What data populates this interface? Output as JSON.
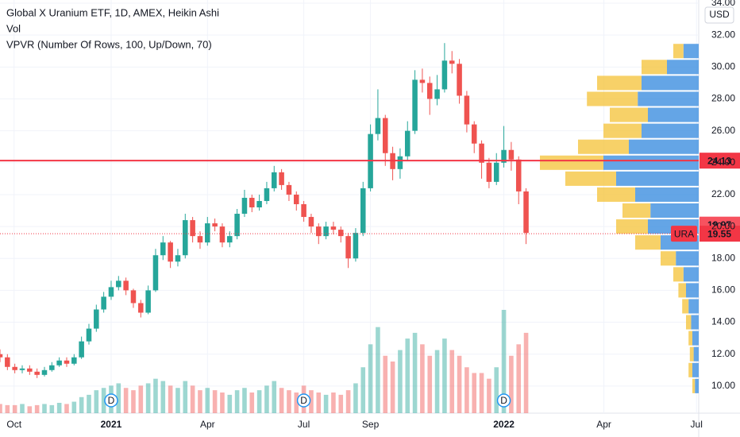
{
  "chart_data": {
    "type": "candlestick",
    "title": "Global X Uranium ETF, 1D, AMEX, Heikin Ashi",
    "indicators": [
      "Vol",
      "VPVR (Number Of Rows, 100, Up/Down, 70)"
    ],
    "currency": "USD",
    "open": [
      12.0,
      11.8,
      11.2,
      11.0,
      11.1,
      10.9,
      10.7,
      11.0,
      11.3,
      11.6,
      11.4,
      11.8,
      12.8,
      13.6,
      14.8,
      15.6,
      16.2,
      16.6,
      16.0,
      15.2,
      14.6,
      16.0,
      18.2,
      19.0,
      17.8,
      18.2,
      20.4,
      19.4,
      19.0,
      20.2,
      20.0,
      19.0,
      19.4,
      20.8,
      21.8,
      21.2,
      21.6,
      22.4,
      23.4,
      22.6,
      22.0,
      21.4,
      20.6,
      20.0,
      19.4,
      20.0,
      19.8,
      19.4,
      18.0,
      19.6,
      22.4,
      25.8,
      26.8,
      24.6,
      23.6,
      24.4,
      26.0,
      29.2,
      29.0,
      28.0,
      28.6,
      30.4,
      30.2,
      28.2,
      26.4,
      25.2,
      24.0,
      22.8,
      24.0,
      24.8,
      24.2,
      22.2
    ],
    "high": [
      12.3,
      12.0,
      11.4,
      11.3,
      11.3,
      11.1,
      11.2,
      11.5,
      11.8,
      11.8,
      12.0,
      13.1,
      13.9,
      15.1,
      15.9,
      16.6,
      16.9,
      16.8,
      16.1,
      15.4,
      16.3,
      18.6,
      19.4,
      19.1,
      18.6,
      20.8,
      20.6,
      19.7,
      20.6,
      20.5,
      20.2,
      19.7,
      21.1,
      22.3,
      22.0,
      22.0,
      22.8,
      23.8,
      23.6,
      22.8,
      22.2,
      21.6,
      20.8,
      20.2,
      20.3,
      20.3,
      20.0,
      19.6,
      19.9,
      22.8,
      26.4,
      28.6,
      27.0,
      25.0,
      24.9,
      26.6,
      29.8,
      29.9,
      29.4,
      29.5,
      31.5,
      31.0,
      30.5,
      28.5,
      26.6,
      25.4,
      24.3,
      24.6,
      26.3,
      25.3,
      24.4,
      22.4
    ],
    "low": [
      11.5,
      11.0,
      10.8,
      10.8,
      10.7,
      10.5,
      10.6,
      10.9,
      11.2,
      11.2,
      11.3,
      11.7,
      12.6,
      13.4,
      14.6,
      15.4,
      16.0,
      15.7,
      14.9,
      14.3,
      14.5,
      15.9,
      17.9,
      17.4,
      17.5,
      18.0,
      19.0,
      18.6,
      18.8,
      19.7,
      18.7,
      18.7,
      19.2,
      20.6,
      20.9,
      21.0,
      21.4,
      22.2,
      22.3,
      21.6,
      21.0,
      20.3,
      19.6,
      18.9,
      19.2,
      19.5,
      19.0,
      17.4,
      17.8,
      19.4,
      22.2,
      25.4,
      23.8,
      22.9,
      23.0,
      24.1,
      25.8,
      28.4,
      27.0,
      27.6,
      28.4,
      29.6,
      27.7,
      25.9,
      24.6,
      23.0,
      22.4,
      22.6,
      23.7,
      23.5,
      21.4,
      18.9
    ],
    "close": [
      11.8,
      11.2,
      11.0,
      11.1,
      10.9,
      10.7,
      11.0,
      11.3,
      11.6,
      11.4,
      11.8,
      12.8,
      13.6,
      14.8,
      15.6,
      16.2,
      16.6,
      16.0,
      15.2,
      14.6,
      16.0,
      18.2,
      19.0,
      17.8,
      18.2,
      20.4,
      19.4,
      19.0,
      20.2,
      20.0,
      19.0,
      19.4,
      20.8,
      21.8,
      21.2,
      21.6,
      22.4,
      23.4,
      22.6,
      22.0,
      21.4,
      20.6,
      20.0,
      19.4,
      20.0,
      19.8,
      19.4,
      18.0,
      19.6,
      22.4,
      25.8,
      26.8,
      24.6,
      23.6,
      24.4,
      26.0,
      29.2,
      29.0,
      28.0,
      28.6,
      30.4,
      30.2,
      28.2,
      26.4,
      25.2,
      24.0,
      22.8,
      24.0,
      24.8,
      24.2,
      22.2,
      19.6
    ],
    "volume": [
      0.8,
      0.7,
      0.7,
      0.8,
      0.6,
      0.7,
      0.8,
      0.7,
      0.9,
      0.8,
      1.0,
      1.4,
      1.6,
      2.0,
      2.2,
      2.4,
      2.6,
      2.2,
      2.0,
      2.4,
      2.6,
      3.0,
      2.8,
      2.4,
      2.2,
      2.8,
      2.4,
      2.0,
      2.2,
      2.0,
      1.8,
      1.6,
      2.0,
      2.2,
      1.8,
      2.0,
      2.4,
      2.8,
      2.2,
      2.0,
      1.8,
      2.4,
      2.0,
      1.8,
      1.6,
      1.8,
      1.6,
      2.0,
      2.6,
      4.0,
      6.0,
      7.5,
      5.0,
      4.5,
      5.5,
      6.5,
      7.0,
      6.0,
      5.0,
      5.5,
      6.5,
      5.5,
      5.0,
      4.0,
      3.5,
      3.5,
      3.0,
      4.0,
      9.0,
      5.0,
      6.0,
      7.0
    ],
    "up_color": "#26a69a",
    "down_color": "#ef5350",
    "profile": {
      "levels": [
        10,
        11,
        12,
        13,
        14,
        15,
        16,
        17,
        18,
        19,
        20,
        21,
        22,
        23,
        24,
        25,
        26,
        27,
        28,
        29,
        30,
        31
      ],
      "up": [
        3,
        5,
        4,
        5,
        6,
        8,
        10,
        12,
        18,
        30,
        40,
        38,
        50,
        65,
        75,
        55,
        45,
        40,
        48,
        45,
        25,
        12
      ],
      "down": [
        2,
        3,
        3,
        3,
        4,
        5,
        6,
        8,
        12,
        20,
        25,
        22,
        30,
        40,
        50,
        40,
        30,
        30,
        40,
        35,
        20,
        8
      ],
      "up_color": "#3d8ee0",
      "down_color": "#f5c542"
    },
    "xlim": [
      0,
      94.3
    ],
    "xticks": [
      {
        "value": 1.9,
        "label": "Oct"
      },
      {
        "value": 15,
        "label": "2021"
      },
      {
        "value": 28,
        "label": "Apr"
      },
      {
        "value": 41,
        "label": "Jul"
      },
      {
        "value": 50,
        "label": "Sep"
      },
      {
        "value": 68,
        "label": "2022"
      },
      {
        "value": 81.5,
        "label": "Apr"
      },
      {
        "value": 94,
        "label": "Jul"
      }
    ],
    "ylim": [
      8.3,
      34.2
    ],
    "yticks": [
      {
        "value": 10,
        "label": "10.00"
      },
      {
        "value": 12,
        "label": "12.00"
      },
      {
        "value": 14,
        "label": "14.00"
      },
      {
        "value": 16,
        "label": "16.00"
      },
      {
        "value": 18,
        "label": "18.00"
      },
      {
        "value": 20,
        "label": "20.00"
      },
      {
        "value": 22,
        "label": "22.00"
      },
      {
        "value": 24,
        "label": "24.00"
      },
      {
        "value": 26,
        "label": "26.00"
      },
      {
        "value": 28,
        "label": "28.00"
      },
      {
        "value": 30,
        "label": "30.00"
      },
      {
        "value": 32,
        "label": "32.00"
      },
      {
        "value": 34,
        "label": "34.00"
      }
    ],
    "grid": true,
    "horizontal_line": {
      "value": 24.13,
      "color": "#f23645"
    },
    "last_price": {
      "symbol": "URA",
      "value": 19.55,
      "color": "#f23645"
    },
    "high_marker": {
      "value": 19.97,
      "color": "#f7525f"
    },
    "dividends": [
      {
        "x": 15,
        "label": "D"
      },
      {
        "x": 41,
        "label": "D"
      },
      {
        "x": 68,
        "label": "D"
      }
    ]
  }
}
